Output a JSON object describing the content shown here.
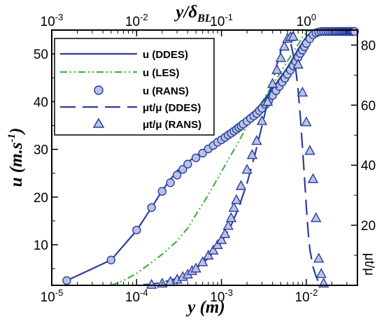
{
  "chart_data": {
    "type": "line",
    "bottom_axis": {
      "label": "y (m)",
      "scale": "log",
      "range": [
        1e-05,
        0.04
      ],
      "ticks": [
        {
          "value": 1e-05,
          "base": "10",
          "exp": "-5"
        },
        {
          "value": 0.0001,
          "base": "10",
          "exp": "-4"
        },
        {
          "value": 0.001,
          "base": "10",
          "exp": "-3"
        },
        {
          "value": 0.01,
          "base": "10",
          "exp": "-2"
        }
      ]
    },
    "top_axis": {
      "label_main": "y/δ",
      "label_sub": "BL",
      "scale": "log",
      "range": [
        0.001,
        4
      ],
      "ticks": [
        {
          "value": 0.001,
          "base": "10",
          "exp": "-3"
        },
        {
          "value": 0.01,
          "base": "10",
          "exp": "-2"
        },
        {
          "value": 0.1,
          "base": "10",
          "exp": "-1"
        },
        {
          "value": 1,
          "base": "10",
          "exp": "0"
        }
      ]
    },
    "left_axis": {
      "label_main": "u (m.s",
      "label_sup": "-1",
      "label_end": ")",
      "range": [
        1.5,
        55
      ],
      "ticks": [
        "10",
        "20",
        "30",
        "40",
        "50"
      ]
    },
    "right_axis": {
      "label": "μt/μ",
      "range": [
        0,
        85
      ],
      "ticks": [
        "20",
        "40",
        "60",
        "80"
      ]
    },
    "grid": false,
    "legend_position": "top-left",
    "series": [
      {
        "name": "u (DDES)",
        "axis": "left",
        "color": "#2b3d9c",
        "style": "solid",
        "marker": "none",
        "x": [
          1.5e-05,
          5e-05,
          0.0001,
          0.00015,
          0.0002,
          0.00025,
          0.0003,
          0.0004,
          0.0005,
          0.0006,
          0.0007,
          0.0008,
          0.0009,
          0.001,
          0.0012,
          0.0014,
          0.0016,
          0.0018,
          0.002,
          0.0022,
          0.0025,
          0.0028,
          0.0031,
          0.0035,
          0.004,
          0.0045,
          0.005,
          0.0055,
          0.006,
          0.0065,
          0.007,
          0.0075,
          0.008,
          0.0085,
          0.009,
          0.0095,
          0.01,
          0.011,
          0.012,
          0.013,
          0.014,
          0.016,
          0.018,
          0.02,
          0.025,
          0.03,
          0.035
        ],
        "y": [
          2.5,
          6.8,
          13.0,
          17.8,
          21.3,
          23.7,
          25.5,
          27.3,
          28.6,
          29.7,
          30.6,
          31.3,
          32.0,
          32.5,
          33.7,
          34.6,
          35.4,
          36.1,
          36.8,
          37.4,
          38.2,
          39.2,
          40.2,
          41.4,
          42.8,
          44.0,
          45.2,
          46.2,
          47.2,
          48.2,
          49.2,
          50.1,
          51.0,
          51.7,
          52.4,
          53.0,
          53.6,
          54.3,
          54.6,
          54.7,
          54.7,
          54.7,
          54.7,
          54.7,
          54.7,
          54.7,
          54.7
        ]
      },
      {
        "name": "u (LES)",
        "axis": "left",
        "color": "#3cb83c",
        "style": "dash-dot-dot",
        "marker": "none",
        "x": [
          5e-05,
          7e-05,
          0.0001,
          0.00015,
          0.0002,
          0.0003,
          0.0004,
          0.0005,
          0.0006,
          0.0007,
          0.0008,
          0.001,
          0.0012,
          0.0015,
          0.002,
          0.0025,
          0.003,
          0.004,
          0.005,
          0.006,
          0.007,
          0.008,
          0.009,
          0.01,
          0.011
        ],
        "y": [
          1.5,
          2.5,
          4.0,
          6.3,
          8.0,
          10.8,
          13.5,
          16.3,
          18.5,
          20.5,
          22.3,
          25.3,
          27.8,
          30.8,
          34.8,
          37.7,
          40.0,
          43.5,
          46.2,
          48.5,
          50.3,
          52.0,
          53.5,
          54.5,
          55.0
        ]
      },
      {
        "name": "u (RANS)",
        "axis": "left",
        "color": "#2b3d9c",
        "fill": "#b8c4e6",
        "style": "none",
        "marker": "circle",
        "x": [
          1.5e-05,
          5e-05,
          0.0001,
          0.00015,
          0.0002,
          0.00025,
          0.0003,
          0.00035,
          0.0004,
          0.0005,
          0.0006,
          0.0007,
          0.0008,
          0.0009,
          0.001,
          0.0011,
          0.0012,
          0.0013,
          0.0014,
          0.0015,
          0.0016,
          0.0017,
          0.0018,
          0.002,
          0.0022,
          0.0024,
          0.0026,
          0.0028,
          0.003,
          0.0033,
          0.0036,
          0.004,
          0.0044,
          0.0048,
          0.0052,
          0.0056,
          0.006,
          0.0065,
          0.007,
          0.0075,
          0.008,
          0.0085,
          0.009,
          0.0095,
          0.01,
          0.011,
          0.012,
          0.013,
          0.014,
          0.015,
          0.016,
          0.017,
          0.018,
          0.019,
          0.02,
          0.021,
          0.022,
          0.023,
          0.024,
          0.025,
          0.026,
          0.027,
          0.028,
          0.029,
          0.03,
          0.031,
          0.032,
          0.033,
          0.034,
          0.035,
          0.036,
          0.037
        ],
        "y": [
          2.5,
          6.8,
          13.1,
          17.8,
          21.2,
          23.0,
          24.6,
          25.8,
          26.9,
          28.2,
          29.2,
          30.1,
          30.8,
          31.5,
          32.0,
          32.5,
          33.0,
          33.4,
          33.8,
          34.2,
          34.6,
          34.9,
          35.3,
          35.9,
          36.5,
          37.0,
          37.5,
          38.1,
          38.6,
          39.4,
          40.2,
          41.3,
          42.3,
          43.2,
          44.1,
          44.9,
          45.7,
          46.6,
          47.5,
          48.4,
          49.3,
          50.1,
          50.8,
          51.5,
          52.2,
          53.2,
          54.0,
          54.4,
          54.6,
          54.7,
          54.7,
          54.7,
          54.7,
          54.7,
          54.7,
          54.7,
          54.7,
          54.7,
          54.7,
          54.7,
          54.7,
          54.7,
          54.7,
          54.7,
          54.7,
          54.7,
          54.7,
          54.7,
          54.7,
          54.7,
          54.7,
          54.7
        ]
      },
      {
        "name": "μt/μ (DDES)",
        "axis": "right",
        "color": "#2b3d9c",
        "style": "long-dash",
        "marker": "none",
        "x": [
          0.00012,
          0.00015,
          0.0002,
          0.0003,
          0.0004,
          0.0005,
          0.0007,
          0.001,
          0.0013,
          0.0016,
          0.002,
          0.0025,
          0.003,
          0.0035,
          0.004,
          0.0045,
          0.005,
          0.0055,
          0.006,
          0.0065,
          0.007,
          0.0075,
          0.008,
          0.0085,
          0.009,
          0.0095,
          0.01,
          0.0105,
          0.011,
          0.012,
          0.013,
          0.014,
          0.015
        ],
        "y": [
          0.2,
          0.4,
          1.0,
          2.3,
          4.0,
          5.6,
          9.0,
          14.3,
          20.0,
          26.0,
          34.0,
          44.0,
          53.0,
          61.0,
          68.0,
          73.5,
          78.0,
          80.5,
          82.0,
          81.0,
          77.0,
          72.0,
          65.0,
          56.0,
          46.0,
          36.0,
          26.0,
          18.0,
          12.0,
          6.0,
          3.0,
          1.0,
          0.0
        ]
      },
      {
        "name": "μt/μ (RANS)",
        "axis": "right",
        "color": "#2b3d9c",
        "fill": "#b8c4e6",
        "style": "none",
        "marker": "triangle",
        "x": [
          0.00015,
          0.0002,
          0.00025,
          0.0003,
          0.00035,
          0.0004,
          0.00045,
          0.0005,
          0.0006,
          0.0007,
          0.0008,
          0.0009,
          0.001,
          0.0011,
          0.0012,
          0.0013,
          0.0014,
          0.0015,
          0.0017,
          0.002,
          0.0023,
          0.0026,
          0.003,
          0.0035,
          0.004,
          0.0045,
          0.005,
          0.0055,
          0.006,
          0.0065,
          0.007,
          0.008,
          0.009,
          0.01,
          0.011,
          0.012,
          0.013,
          0.014,
          0.015,
          0.016
        ],
        "y": [
          0.2,
          0.6,
          1.2,
          1.9,
          2.8,
          3.6,
          4.8,
          5.6,
          7.7,
          9.9,
          11.6,
          13.4,
          15.1,
          17.1,
          19.8,
          22.4,
          25.8,
          28.4,
          33.1,
          38.5,
          43.4,
          48.1,
          54.7,
          61.1,
          67.1,
          71.7,
          75.7,
          79.5,
          82.1,
          82.7,
          82.8,
          73.5,
          64.2,
          54.3,
          44.8,
          35.4,
          22.4,
          8.9,
          3.8,
          0.6
        ]
      }
    ]
  }
}
